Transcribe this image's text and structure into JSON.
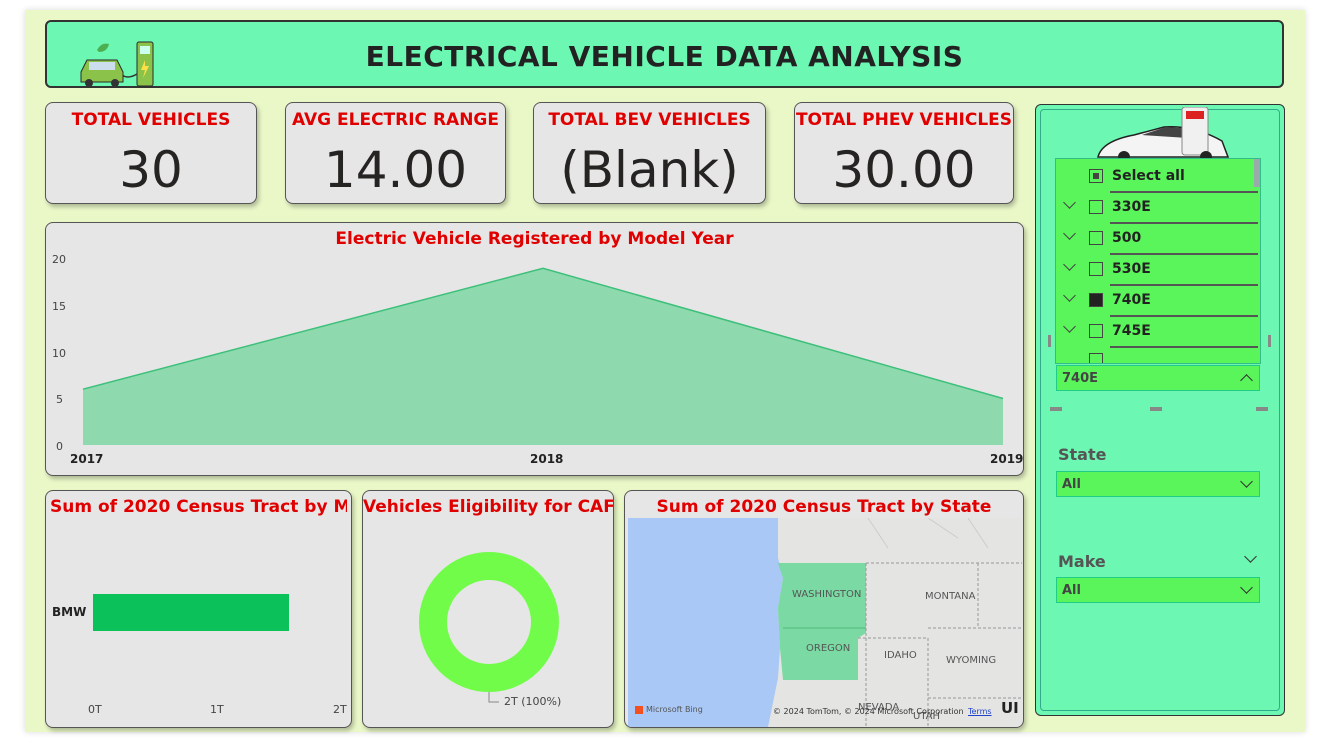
{
  "header": {
    "title": "ELECTRICAL VEHICLE DATA ANALYSIS"
  },
  "kpis": [
    {
      "label": "TOTAL VEHICLES",
      "value": "30"
    },
    {
      "label": "AVG ELECTRIC RANGE",
      "value": "14.00"
    },
    {
      "label": "TOTAL BEV VEHICLES",
      "value": "(Blank)"
    },
    {
      "label": "TOTAL PHEV VEHICLES",
      "value": "30.00"
    }
  ],
  "area_chart": {
    "title": "Electric Vehicle Registered by Model Year",
    "y_ticks": [
      "20",
      "15",
      "10",
      "5",
      "0"
    ],
    "x_ticks": [
      "2017",
      "2018",
      "2019"
    ]
  },
  "bar_chart": {
    "title": "Sum of 2020 Census Tract by M...",
    "category": "BMW",
    "x_ticks": [
      "0T",
      "1T",
      "2T"
    ]
  },
  "donut_chart": {
    "title": "Vehicles Eligibility for CAFV",
    "label": "2T (100%)"
  },
  "map": {
    "title": "Sum of 2020 Census Tract by State",
    "labels": {
      "washington": "WASHINGTON",
      "oregon": "OREGON",
      "idaho": "IDAHO",
      "montana": "MONTANA",
      "wyoming": "WYOMING",
      "nevada": "NEVADA",
      "utah": "UTAH"
    },
    "bing": "Microsoft Bing",
    "copyright": "© 2024 TomTom, © 2024 Microsoft Corporation",
    "terms": "Terms",
    "edge_text": "UI"
  },
  "slicers": {
    "model": {
      "selected": "740E",
      "items": [
        {
          "label": "Select all",
          "state": "partial"
        },
        {
          "label": "330E",
          "state": "off"
        },
        {
          "label": "500",
          "state": "off"
        },
        {
          "label": "530E",
          "state": "off"
        },
        {
          "label": "740E",
          "state": "on"
        },
        {
          "label": "745E",
          "state": "off"
        }
      ]
    },
    "state": {
      "label": "State",
      "value": "All"
    },
    "make": {
      "label": "Make",
      "value": "All"
    }
  },
  "colors": {
    "accent_green": "#6cf7b2",
    "area_fill": "#8ed9ad",
    "area_line": "#3cc07a",
    "bar": "#0bc15a",
    "donut": "#71fc4a",
    "title_red": "#e00000"
  },
  "chart_data": [
    {
      "type": "area",
      "title": "Electric Vehicle Registered by Model Year",
      "x": [
        "2017",
        "2018",
        "2019"
      ],
      "values": [
        6,
        19,
        5
      ],
      "ylim": [
        0,
        20
      ]
    },
    {
      "type": "bar",
      "title": "Sum of 2020 Census Tract by M...",
      "categories": [
        "BMW"
      ],
      "values": [
        1.6
      ],
      "xlim": [
        0,
        2
      ]
    },
    {
      "type": "pie",
      "title": "Vehicles Eligibility for CAFV",
      "values": [
        100
      ]
    }
  ]
}
